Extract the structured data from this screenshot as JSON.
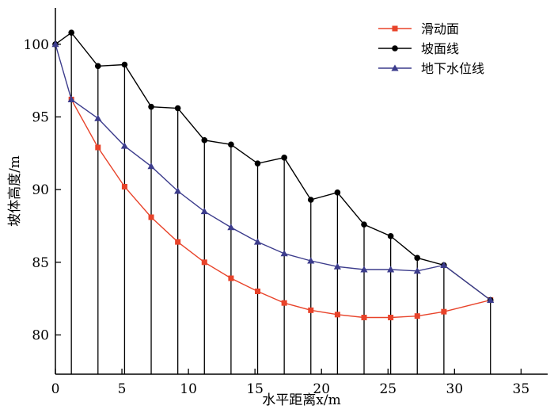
{
  "chart_data": {
    "type": "line",
    "xlabel": "水平距离x/m",
    "ylabel": "坡体高度/m",
    "xlim": [
      0,
      37
    ],
    "ylim": [
      77.3,
      102.5
    ],
    "xticks": [
      0,
      5,
      10,
      15,
      20,
      25,
      30,
      35
    ],
    "yticks": [
      80,
      85,
      90,
      95,
      100
    ],
    "legend_position": "top-right",
    "series": [
      {
        "name": "滑动面",
        "color": "#e8432a",
        "marker": "square",
        "x": [
          1.2,
          3.2,
          5.2,
          7.2,
          9.2,
          11.2,
          13.2,
          15.2,
          17.2,
          19.2,
          21.2,
          23.2,
          25.2,
          27.2,
          29.2,
          32.7
        ],
        "y": [
          96.2,
          92.9,
          90.2,
          88.1,
          86.4,
          85.0,
          83.9,
          83.0,
          82.2,
          81.7,
          81.4,
          81.2,
          81.2,
          81.3,
          81.6,
          82.4
        ]
      },
      {
        "name": "坡面线",
        "color": "#000000",
        "marker": "circle",
        "x": [
          0,
          1.2,
          3.2,
          5.2,
          7.2,
          9.2,
          11.2,
          13.2,
          15.2,
          17.2,
          19.2,
          21.2,
          23.2,
          25.2,
          27.2,
          29.2,
          32.7
        ],
        "y": [
          100.0,
          100.8,
          98.5,
          98.6,
          95.7,
          95.6,
          93.4,
          93.1,
          91.8,
          92.2,
          89.3,
          89.8,
          87.6,
          86.8,
          85.3,
          84.8,
          82.4
        ]
      },
      {
        "name": "地下水位线",
        "color": "#3c3c8c",
        "marker": "triangle",
        "x": [
          0,
          1.2,
          3.2,
          5.2,
          7.2,
          9.2,
          11.2,
          13.2,
          15.2,
          17.2,
          19.2,
          21.2,
          23.2,
          25.2,
          27.2,
          29.2,
          32.7
        ],
        "y": [
          100.0,
          96.2,
          94.9,
          93.0,
          91.6,
          89.9,
          88.5,
          87.4,
          86.4,
          85.6,
          85.1,
          84.7,
          84.5,
          84.5,
          84.4,
          84.8,
          82.4
        ]
      }
    ],
    "verticals": {
      "x": [
        1.2,
        3.2,
        5.2,
        7.2,
        9.2,
        11.2,
        13.2,
        15.2,
        17.2,
        19.2,
        21.2,
        23.2,
        25.2,
        27.2,
        29.2,
        32.7
      ],
      "top": [
        100.8,
        98.5,
        98.6,
        95.7,
        95.6,
        93.4,
        93.1,
        91.8,
        92.2,
        89.3,
        89.8,
        87.6,
        86.8,
        85.3,
        84.8,
        82.4
      ]
    }
  }
}
